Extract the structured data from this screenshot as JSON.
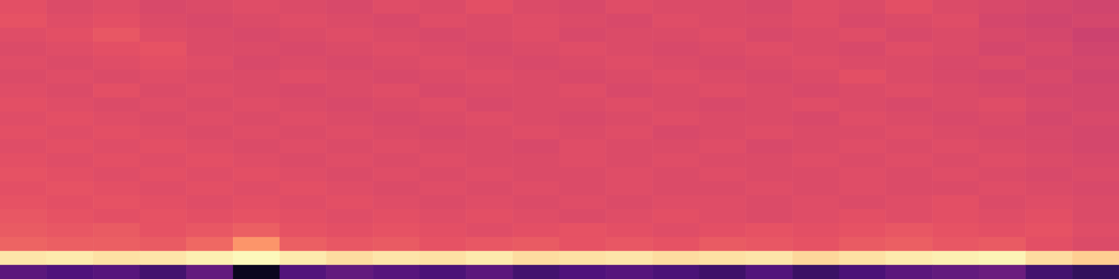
{
  "chart_data": {
    "type": "heatmap",
    "tick_labels": false,
    "zlim": [
      0,
      1
    ],
    "cells": [
      [
        0.62,
        0.6,
        0.61,
        0.59,
        0.6,
        0.61,
        0.6,
        0.59,
        0.61,
        0.6,
        0.62,
        0.6,
        0.59,
        0.61,
        0.6,
        0.6,
        0.59,
        0.61,
        0.6,
        0.62,
        0.6,
        0.59,
        0.58,
        0.57
      ],
      [
        0.63,
        0.61,
        0.62,
        0.6,
        0.59,
        0.6,
        0.61,
        0.6,
        0.59,
        0.61,
        0.6,
        0.61,
        0.6,
        0.59,
        0.61,
        0.6,
        0.6,
        0.61,
        0.59,
        0.6,
        0.61,
        0.58,
        0.57,
        0.58
      ],
      [
        0.61,
        0.62,
        0.64,
        0.61,
        0.6,
        0.59,
        0.6,
        0.61,
        0.6,
        0.59,
        0.6,
        0.61,
        0.59,
        0.6,
        0.6,
        0.61,
        0.59,
        0.6,
        0.61,
        0.59,
        0.6,
        0.59,
        0.58,
        0.56
      ],
      [
        0.6,
        0.61,
        0.62,
        0.63,
        0.6,
        0.6,
        0.59,
        0.6,
        0.61,
        0.6,
        0.59,
        0.6,
        0.61,
        0.6,
        0.59,
        0.6,
        0.61,
        0.6,
        0.59,
        0.61,
        0.6,
        0.58,
        0.59,
        0.57
      ],
      [
        0.61,
        0.6,
        0.61,
        0.62,
        0.61,
        0.59,
        0.6,
        0.59,
        0.6,
        0.61,
        0.6,
        0.59,
        0.6,
        0.61,
        0.6,
        0.59,
        0.6,
        0.61,
        0.6,
        0.6,
        0.59,
        0.6,
        0.58,
        0.58
      ],
      [
        0.6,
        0.61,
        0.6,
        0.61,
        0.6,
        0.6,
        0.61,
        0.6,
        0.59,
        0.6,
        0.61,
        0.6,
        0.59,
        0.6,
        0.61,
        0.6,
        0.59,
        0.6,
        0.62,
        0.6,
        0.59,
        0.58,
        0.59,
        0.57
      ],
      [
        0.61,
        0.6,
        0.62,
        0.6,
        0.61,
        0.6,
        0.59,
        0.6,
        0.61,
        0.59,
        0.6,
        0.6,
        0.61,
        0.59,
        0.6,
        0.61,
        0.6,
        0.59,
        0.6,
        0.61,
        0.6,
        0.59,
        0.58,
        0.58
      ],
      [
        0.62,
        0.61,
        0.6,
        0.61,
        0.6,
        0.61,
        0.6,
        0.59,
        0.6,
        0.61,
        0.59,
        0.6,
        0.6,
        0.61,
        0.6,
        0.59,
        0.6,
        0.61,
        0.6,
        0.59,
        0.6,
        0.61,
        0.59,
        0.58
      ],
      [
        0.61,
        0.62,
        0.61,
        0.6,
        0.61,
        0.6,
        0.61,
        0.6,
        0.59,
        0.6,
        0.61,
        0.6,
        0.59,
        0.6,
        0.61,
        0.6,
        0.6,
        0.59,
        0.61,
        0.6,
        0.59,
        0.6,
        0.58,
        0.59
      ],
      [
        0.62,
        0.61,
        0.62,
        0.61,
        0.6,
        0.61,
        0.6,
        0.61,
        0.6,
        0.59,
        0.6,
        0.61,
        0.6,
        0.61,
        0.59,
        0.6,
        0.61,
        0.6,
        0.6,
        0.61,
        0.6,
        0.59,
        0.59,
        0.58
      ],
      [
        0.61,
        0.62,
        0.61,
        0.62,
        0.61,
        0.6,
        0.61,
        0.6,
        0.61,
        0.6,
        0.6,
        0.59,
        0.61,
        0.6,
        0.6,
        0.61,
        0.59,
        0.6,
        0.61,
        0.6,
        0.61,
        0.6,
        0.59,
        0.58
      ],
      [
        0.62,
        0.61,
        0.62,
        0.61,
        0.62,
        0.61,
        0.6,
        0.61,
        0.6,
        0.61,
        0.6,
        0.6,
        0.61,
        0.6,
        0.61,
        0.6,
        0.6,
        0.61,
        0.6,
        0.61,
        0.6,
        0.61,
        0.6,
        0.59
      ],
      [
        0.63,
        0.62,
        0.61,
        0.62,
        0.61,
        0.62,
        0.61,
        0.6,
        0.61,
        0.6,
        0.61,
        0.6,
        0.6,
        0.61,
        0.6,
        0.61,
        0.6,
        0.6,
        0.61,
        0.6,
        0.61,
        0.6,
        0.59,
        0.6
      ],
      [
        0.62,
        0.63,
        0.62,
        0.61,
        0.62,
        0.61,
        0.62,
        0.61,
        0.6,
        0.61,
        0.6,
        0.61,
        0.6,
        0.61,
        0.6,
        0.6,
        0.61,
        0.6,
        0.61,
        0.6,
        0.6,
        0.61,
        0.6,
        0.59
      ],
      [
        0.63,
        0.62,
        0.63,
        0.62,
        0.61,
        0.62,
        0.61,
        0.62,
        0.61,
        0.6,
        0.61,
        0.6,
        0.61,
        0.6,
        0.61,
        0.61,
        0.6,
        0.61,
        0.6,
        0.61,
        0.62,
        0.6,
        0.61,
        0.6
      ],
      [
        0.64,
        0.63,
        0.62,
        0.63,
        0.62,
        0.63,
        0.62,
        0.61,
        0.62,
        0.61,
        0.62,
        0.61,
        0.6,
        0.61,
        0.62,
        0.61,
        0.6,
        0.61,
        0.62,
        0.61,
        0.62,
        0.61,
        0.62,
        0.6
      ],
      [
        0.65,
        0.64,
        0.65,
        0.63,
        0.64,
        0.66,
        0.63,
        0.62,
        0.63,
        0.62,
        0.61,
        0.62,
        0.63,
        0.62,
        0.61,
        0.62,
        0.63,
        0.62,
        0.63,
        0.64,
        0.63,
        0.62,
        0.63,
        0.61
      ],
      [
        0.67,
        0.66,
        0.66,
        0.65,
        0.68,
        0.78,
        0.66,
        0.64,
        0.65,
        0.63,
        0.64,
        0.65,
        0.63,
        0.64,
        0.63,
        0.65,
        0.64,
        0.63,
        0.65,
        0.66,
        0.64,
        0.65,
        0.62,
        0.6
      ],
      [
        0.95,
        0.96,
        0.94,
        0.95,
        0.97,
        0.99,
        0.96,
        0.93,
        0.95,
        0.94,
        0.96,
        0.93,
        0.94,
        0.95,
        0.93,
        0.94,
        0.95,
        0.92,
        0.94,
        0.96,
        0.97,
        0.98,
        0.93,
        0.9
      ],
      [
        0.28,
        0.25,
        0.27,
        0.22,
        0.3,
        0.05,
        0.26,
        0.3,
        0.27,
        0.24,
        0.28,
        0.22,
        0.25,
        0.27,
        0.24,
        0.21,
        0.26,
        0.2,
        0.24,
        0.28,
        0.3,
        0.32,
        0.22,
        0.18
      ]
    ]
  }
}
